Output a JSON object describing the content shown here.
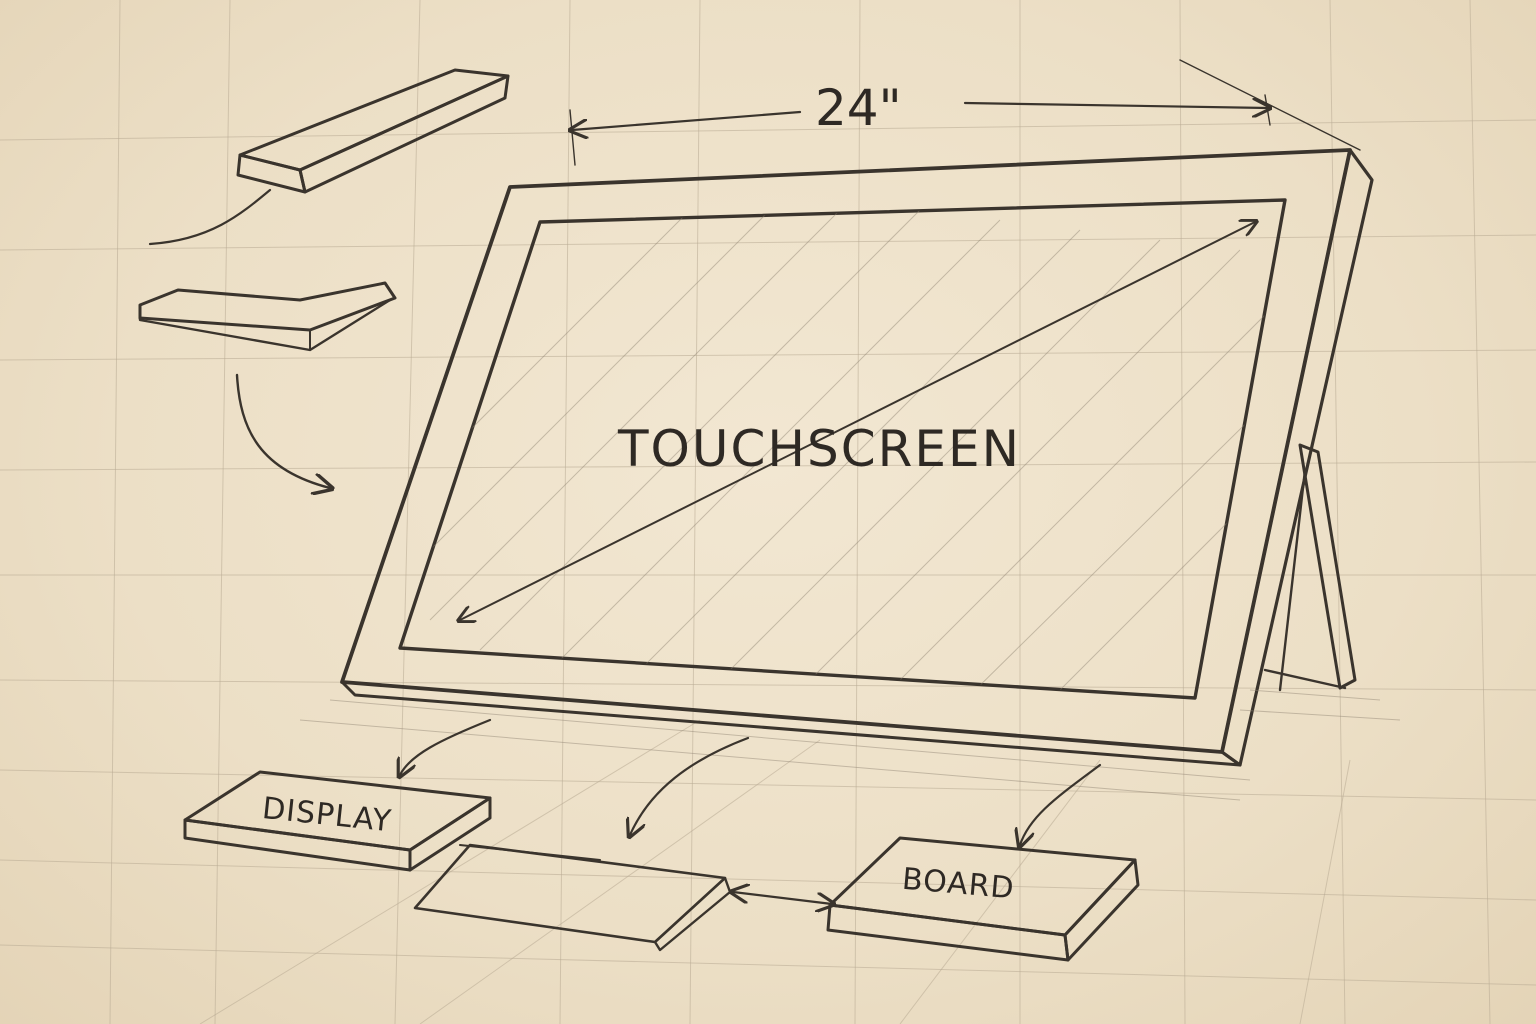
{
  "diagram": {
    "screen_label": "TOUCHSCREEN",
    "dimension_label": "24\"",
    "display_label": "DISPLAY",
    "board_label": "BOARD"
  },
  "colors": {
    "paper": "#efe3cc",
    "pencil": "#3a342d",
    "grid": "#b9ab94"
  }
}
